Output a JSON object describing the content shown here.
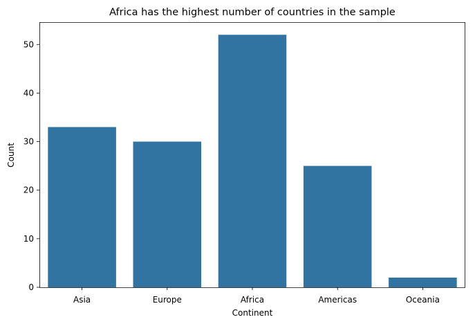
{
  "chart_data": {
    "type": "bar",
    "title": "Africa has the highest number of countries in the sample",
    "xlabel": "Continent",
    "ylabel": "Count",
    "categories": [
      "Asia",
      "Europe",
      "Africa",
      "Americas",
      "Oceania"
    ],
    "values": [
      33,
      30,
      52,
      25,
      2
    ],
    "ylim": [
      0,
      54.6
    ],
    "yticks": [
      0,
      10,
      20,
      30,
      40,
      50
    ],
    "grid": false,
    "bar_color": "#3274a1"
  }
}
